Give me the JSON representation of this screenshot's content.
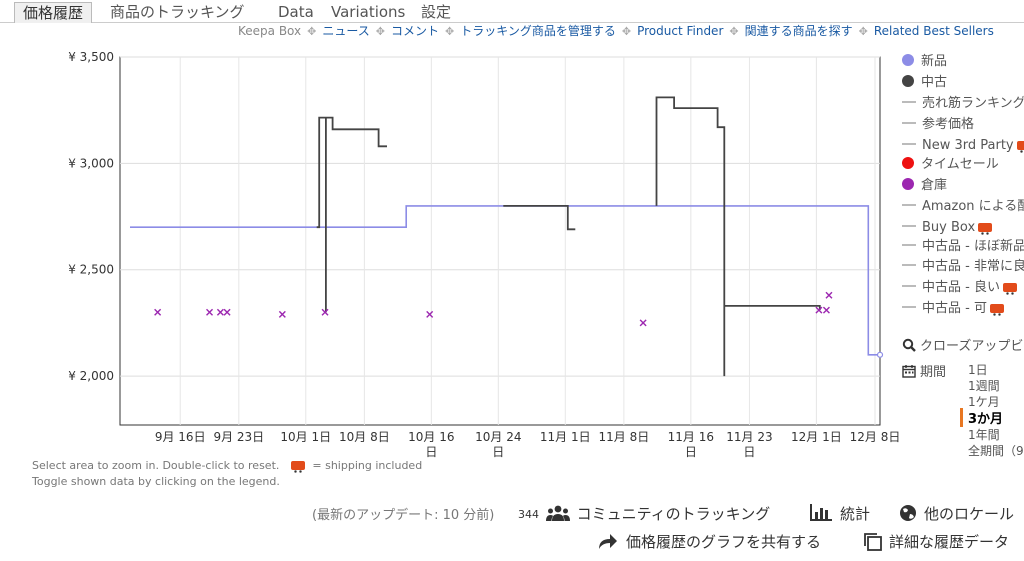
{
  "tabs": [
    {
      "label": "価格履歴",
      "active": true
    },
    {
      "label": "商品のトラッキング"
    },
    {
      "label": "Data"
    },
    {
      "label": "Variations"
    },
    {
      "label": "設定"
    }
  ],
  "links": [
    "Keepa Box",
    "ニュース",
    "コメント",
    "トラッキング商品を管理する",
    "Product Finder",
    "関連する商品を探す",
    "Related Best Sellers"
  ],
  "legend": [
    {
      "label": "新品",
      "kind": "dot",
      "color": "#8c8ce6"
    },
    {
      "label": "中古",
      "kind": "dot",
      "color": "#444444"
    },
    {
      "label": "売れ筋ランキング",
      "kind": "dash"
    },
    {
      "label": "参考価格",
      "kind": "dash"
    },
    {
      "label": "New 3rd Party",
      "kind": "dash",
      "truck": true
    },
    {
      "label": "タイムセール",
      "kind": "dot",
      "color": "#ee1111"
    },
    {
      "label": "倉庫",
      "kind": "dot",
      "color": "#9c27b0"
    },
    {
      "label": "Amazon による配",
      "kind": "dash"
    },
    {
      "label": "Buy Box",
      "kind": "dash",
      "truck": true
    },
    {
      "label": "中古品 - ほぼ新品",
      "kind": "dash"
    },
    {
      "label": "中古品 - 非常に良",
      "kind": "dash"
    },
    {
      "label": "中古品 - 良い",
      "kind": "dash",
      "truck": true
    },
    {
      "label": "中古品 - 可",
      "kind": "dash",
      "truck": true
    }
  ],
  "closeup_label": "クローズアップビ",
  "period_label": "期間",
  "ranges": [
    {
      "label": "1日"
    },
    {
      "label": "1週間"
    },
    {
      "label": "1ケ月"
    },
    {
      "label": "3か月",
      "active": true
    },
    {
      "label": "1年間"
    },
    {
      "label": "全期間（9"
    }
  ],
  "hint_line1": "Select area to zoom in. Double-click to reset.",
  "hint_line1b": "= shipping included",
  "hint_line2": "Toggle shown data by clicking on the legend.",
  "update_text": "(最新のアップデート: 10 分前)",
  "tracking_count": "344",
  "community_label": "コミュニティのトラッキング",
  "stats_label": "統計",
  "locale_label": "他のロケール",
  "share_label": "価格履歴のグラフを共有する",
  "detail_label": "詳細な履歴データ",
  "chart_data": {
    "type": "line",
    "ylim": [
      1770,
      3500
    ],
    "yticks": [
      2000,
      2500,
      3000,
      3500
    ],
    "ytick_labels": [
      "¥ 2,000",
      "¥ 2,500",
      "¥ 3,000",
      "¥ 3,500"
    ],
    "xlim": [
      0,
      89
    ],
    "xticks": [
      {
        "x": 6,
        "l1": "9月 16日",
        "l2": ""
      },
      {
        "x": 13,
        "l1": "9月 23日",
        "l2": ""
      },
      {
        "x": 21,
        "l1": "10月 1日",
        "l2": ""
      },
      {
        "x": 28,
        "l1": "10月 8日",
        "l2": ""
      },
      {
        "x": 36,
        "l1": "10月 16",
        "l2": "日"
      },
      {
        "x": 44,
        "l1": "10月 24",
        "l2": "日"
      },
      {
        "x": 52,
        "l1": "11月 1日",
        "l2": ""
      },
      {
        "x": 59,
        "l1": "11月 8日",
        "l2": ""
      },
      {
        "x": 67,
        "l1": "11月 16",
        "l2": "日"
      },
      {
        "x": 74,
        "l1": "11月 23",
        "l2": "日"
      },
      {
        "x": 82,
        "l1": "12月 1日",
        "l2": ""
      },
      {
        "x": 89,
        "l1": "12月 8日",
        "l2": ""
      }
    ],
    "series": [
      {
        "name": "新品",
        "color": "#8c8ce6",
        "points": [
          [
            0,
            2700
          ],
          [
            33,
            2700
          ],
          [
            33,
            2800
          ],
          [
            88.2,
            2800
          ],
          [
            88.2,
            2100
          ],
          [
            89.6,
            2100
          ]
        ]
      },
      {
        "name": "中古",
        "color": "#444444",
        "segments": [
          [
            [
              22.3,
              2700
            ],
            [
              22.6,
              2700
            ],
            [
              22.6,
              3215
            ],
            [
              23.4,
              3215
            ],
            [
              23.4,
              2300
            ],
            [
              23.4,
              3215
            ],
            [
              24.2,
              3215
            ],
            [
              24.2,
              3160
            ],
            [
              29.7,
              3160
            ],
            [
              29.7,
              3080
            ],
            [
              30.7,
              3080
            ]
          ],
          [
            [
              44.6,
              2800
            ],
            [
              52.3,
              2800
            ],
            [
              52.3,
              2690
            ],
            [
              53.2,
              2690
            ]
          ],
          [
            [
              62.9,
              2800
            ],
            [
              62.9,
              3310
            ],
            [
              65.0,
              3310
            ],
            [
              65.0,
              3260
            ],
            [
              70.2,
              3260
            ],
            [
              70.2,
              3170
            ],
            [
              71.0,
              3170
            ],
            [
              71.0,
              2000
            ],
            [
              71.0,
              2330
            ],
            [
              82.4,
              2330
            ],
            [
              82.4,
              2310
            ]
          ]
        ]
      },
      {
        "name": "倉庫",
        "color": "#9c27b0",
        "points": [
          [
            3.3,
            2300
          ],
          [
            9.5,
            2300
          ],
          [
            10.8,
            2300
          ],
          [
            11.6,
            2300
          ],
          [
            18.2,
            2290
          ],
          [
            23.3,
            2300
          ],
          [
            35.8,
            2290
          ],
          [
            61.3,
            2250
          ],
          [
            82.3,
            2310
          ],
          [
            83.2,
            2310
          ],
          [
            83.5,
            2380
          ]
        ]
      }
    ]
  }
}
